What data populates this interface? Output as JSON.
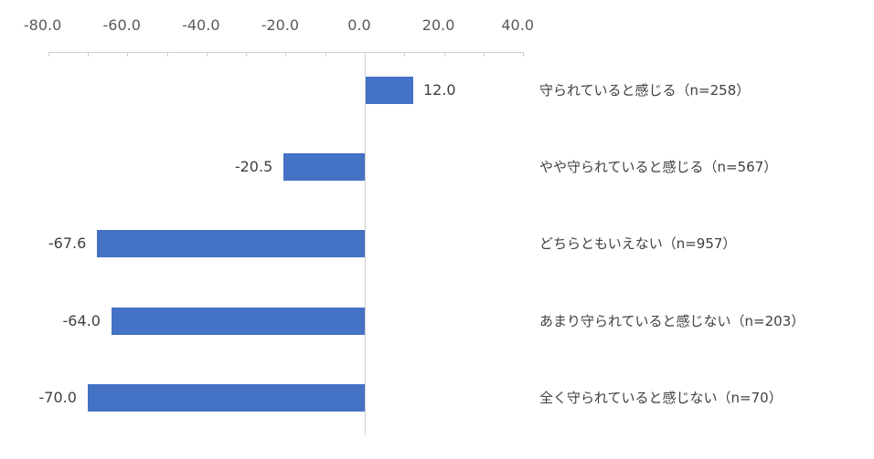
{
  "chart_data": {
    "type": "bar",
    "orientation": "horizontal",
    "title": "",
    "xlabel": "",
    "ylabel": "",
    "xlim": [
      -80,
      40
    ],
    "x_ticks": [
      "-80.0",
      "-60.0",
      "-40.0",
      "-20.0",
      "0.0",
      "20.0",
      "40.0"
    ],
    "x_tick_values": [
      -80,
      -60,
      -40,
      -20,
      0,
      20,
      40
    ],
    "axis_position": "top",
    "grid": false,
    "bar_color": "#4472c4",
    "categories": [
      "守られていると感じる（n=258）",
      "やや守られていると感じる（n=567）",
      "どちらともいえない（n=957）",
      "あまり守られていると感じない（n=203）",
      "全く守られていると感じない（n=70）"
    ],
    "values": [
      12.0,
      -20.5,
      -67.6,
      -64.0,
      -70.0
    ],
    "value_labels": [
      "12.0",
      "-20.5",
      "-67.6",
      "-64.0",
      "-70.0"
    ]
  }
}
